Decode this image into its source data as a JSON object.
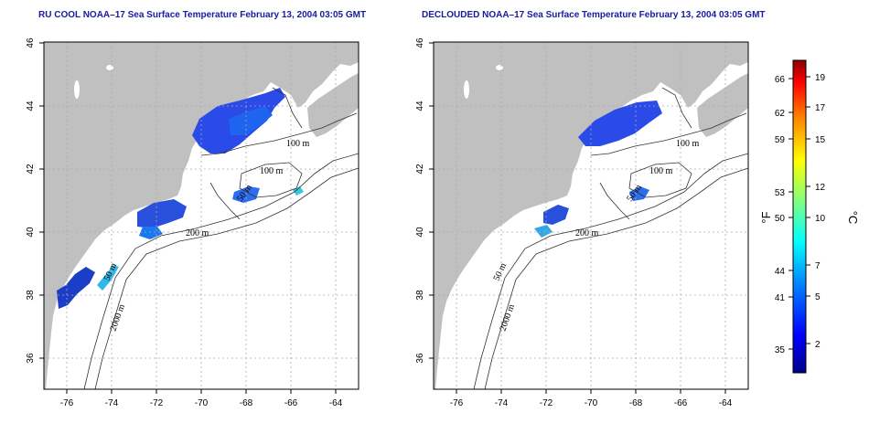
{
  "titles": {
    "left": "RU COOL NOAA–17 Sea Surface Temperature February 13, 2004 03:05 GMT",
    "right": "DECLOUDED NOAA–17 Sea Surface Temperature February 13, 2004 03:05 GMT"
  },
  "map": {
    "lon_range": [
      -77,
      -63
    ],
    "lat_range": [
      35,
      46
    ],
    "x_ticks": [
      "-76",
      "-74",
      "-72",
      "-70",
      "-68",
      "-66",
      "-64"
    ],
    "y_ticks": [
      "36",
      "38",
      "40",
      "42",
      "44",
      "46"
    ],
    "land_color": "#c0c0c0",
    "sea_color": "#ffffff",
    "contour_labels": [
      "100 m",
      "100 m",
      "50 m",
      "200 m",
      "50 m",
      "2000 m"
    ]
  },
  "colorbar": {
    "fahrenheit_ticks": [
      "66",
      "62",
      "59",
      "53",
      "50",
      "44",
      "41",
      "35"
    ],
    "celsius_ticks": [
      "19",
      "17",
      "15",
      "12",
      "10",
      "7",
      "5",
      "2"
    ],
    "label_f": "°F",
    "label_c": "°C",
    "colors": [
      "#00008b",
      "#0000ff",
      "#0080ff",
      "#00ffff",
      "#80ff80",
      "#ffff00",
      "#ff8000",
      "#ff0000",
      "#8b0000"
    ]
  }
}
